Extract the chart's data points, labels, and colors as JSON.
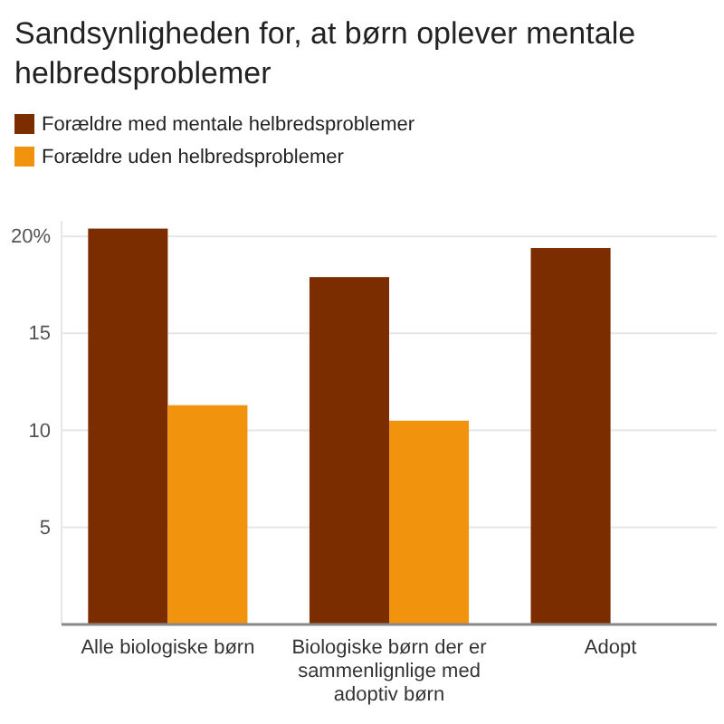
{
  "chart_data": {
    "type": "bar",
    "title": "Sandsynligheden for, at børn oplever mentale helbredsproblemer",
    "categories": [
      "Alle biologiske børn",
      "Biologiske børn der er sammenlignlige med adoptiv børn",
      "Adopt"
    ],
    "series": [
      {
        "name": "Forældre med mentale helbredsproblemer",
        "color": "#7b2d00",
        "values": [
          20.4,
          17.9,
          19.4
        ]
      },
      {
        "name": "Forældre uden helbredsproblemer",
        "color": "#f2930d",
        "values": [
          11.3,
          10.5,
          null
        ]
      }
    ],
    "ylim": [
      0,
      20.8
    ],
    "yticks": [
      {
        "value": 5,
        "label": "5"
      },
      {
        "value": 10,
        "label": "10"
      },
      {
        "value": 15,
        "label": "15"
      },
      {
        "value": 20,
        "label": "20%"
      }
    ],
    "grid": "y",
    "legend": "top"
  }
}
